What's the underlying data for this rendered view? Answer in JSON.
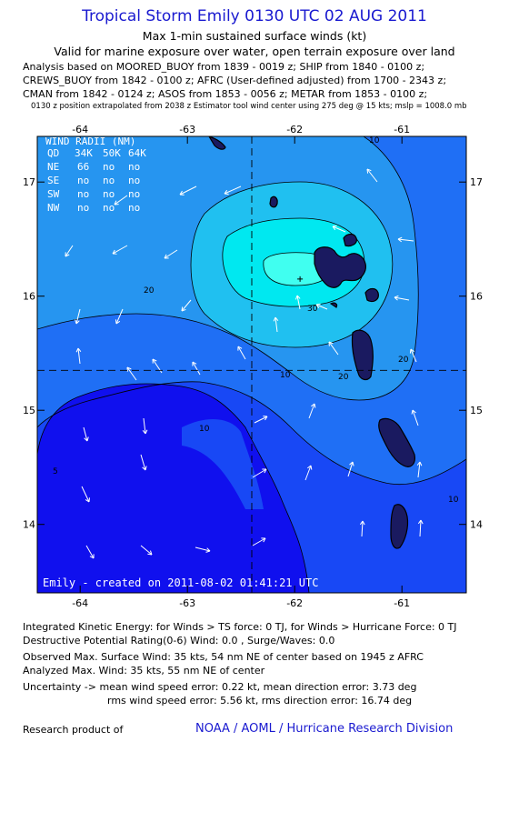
{
  "header": {
    "title": "Tropical Storm Emily 0130 UTC 02 AUG 2011",
    "subtitle": "Max 1-min sustained surface winds (kt)",
    "validity": "Valid for marine exposure over water, open terrain exposure over land",
    "analysis_lines": [
      "Analysis based on MOORED_BUOY from 1839 - 0019 z; SHIP from 1840 - 0100 z;",
      "CREWS_BUOY from 1842 - 0100 z; AFRC (User-defined adjusted) from 1700 - 2343 z;",
      "CMAN from 1842 - 0124 z; ASOS from 1853 - 0056 z; METAR from 1853 - 0100 z;"
    ],
    "extrapolation_note": "0130 z position extrapolated from 2038 z Estimator tool wind center using 275 deg @ 15 kts; mslp = 1008.0 mb"
  },
  "map": {
    "lon_ticks": [
      "-64",
      "-63",
      "-62",
      "-61"
    ],
    "lat_ticks": [
      "17",
      "16",
      "15",
      "14"
    ],
    "lon_range": [
      -64.4,
      -60.4
    ],
    "lat_range": [
      13.4,
      17.4
    ],
    "center": {
      "lon": -61.95,
      "lat": 16.15
    },
    "crosshair": {
      "lon": -62.4,
      "lat": 15.35
    },
    "contour_labels": [
      "30",
      "20",
      "20",
      "20",
      "10",
      "10",
      "10",
      "10",
      "5"
    ],
    "credit": "Emily  -  created on 2011-08-02 01:41:21 UTC",
    "wind_radii": {
      "title": "WIND RADII (NM)",
      "headers": [
        "QD",
        "34K",
        "50K",
        "64K"
      ],
      "rows": [
        [
          "NE",
          "66",
          "no",
          "no"
        ],
        [
          "SE",
          "no",
          "no",
          "no"
        ],
        [
          "SW",
          "no",
          "no",
          "no"
        ],
        [
          "NW",
          "no",
          "no",
          "no"
        ]
      ]
    },
    "colors": {
      "band_5": "#1010ee",
      "band_10": "#1848f5",
      "band_15": "#1f6ff5",
      "band_20": "#2695f0",
      "band_25": "#20c0f0",
      "band_30": "#00e8f0",
      "band_35": "#40fff0",
      "land": "#1a1a60"
    }
  },
  "stats": {
    "ike": "Integrated Kinetic Energy:  for Winds > TS force: 0 TJ,  for Winds > Hurricane Force: 0 TJ",
    "dpr": "Destructive Potential Rating(0-6)   Wind: 0.0 , Surge/Waves: 0.0",
    "observed": "Observed Max. Surface Wind: 35 kts, 54 nm NE of center based on 1945 z AFRC",
    "analyzed": "Analyzed Max. Wind: 35 kts, 55 nm NE of center",
    "uncertainty_1": "Uncertainty -> mean wind speed error: 0.22 kt,   mean direction error: 3.73 deg",
    "uncertainty_2": "rms wind speed error: 5.56 kt,   rms direction error: 16.74 deg"
  },
  "footer": {
    "left": "Research product of",
    "right": "NOAA / AOML / Hurricane Research Division"
  }
}
